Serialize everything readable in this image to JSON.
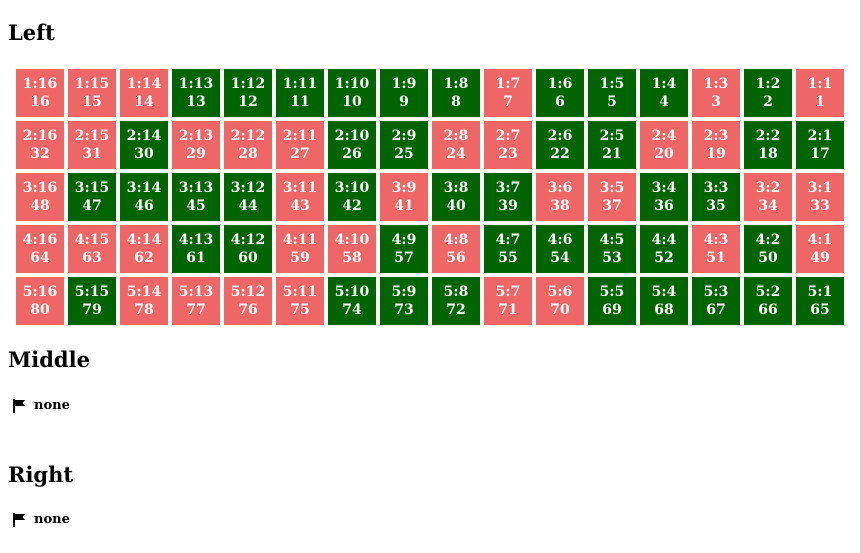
{
  "sections": {
    "left": {
      "title": "Left",
      "rows": 5,
      "cols": 16,
      "cell_colors": {
        "red": "#ee6666",
        "green": "#006400"
      },
      "status_by_row": [
        [
          "r",
          "r",
          "r",
          "g",
          "g",
          "g",
          "g",
          "g",
          "g",
          "r",
          "g",
          "g",
          "g",
          "r",
          "g",
          "r"
        ],
        [
          "r",
          "r",
          "g",
          "r",
          "r",
          "r",
          "g",
          "g",
          "r",
          "r",
          "g",
          "g",
          "r",
          "r",
          "g",
          "g"
        ],
        [
          "r",
          "g",
          "g",
          "g",
          "g",
          "r",
          "g",
          "r",
          "g",
          "g",
          "r",
          "r",
          "g",
          "g",
          "r",
          "r"
        ],
        [
          "r",
          "r",
          "r",
          "g",
          "g",
          "r",
          "r",
          "g",
          "r",
          "g",
          "g",
          "g",
          "g",
          "r",
          "g",
          "r"
        ],
        [
          "r",
          "g",
          "r",
          "r",
          "r",
          "r",
          "g",
          "g",
          "g",
          "r",
          "r",
          "g",
          "g",
          "g",
          "g",
          "g"
        ]
      ]
    },
    "middle": {
      "title": "Middle",
      "flag_icon": "flag-icon",
      "status_text": "none"
    },
    "right": {
      "title": "Right",
      "flag_icon": "flag-icon",
      "status_text": "none"
    }
  }
}
